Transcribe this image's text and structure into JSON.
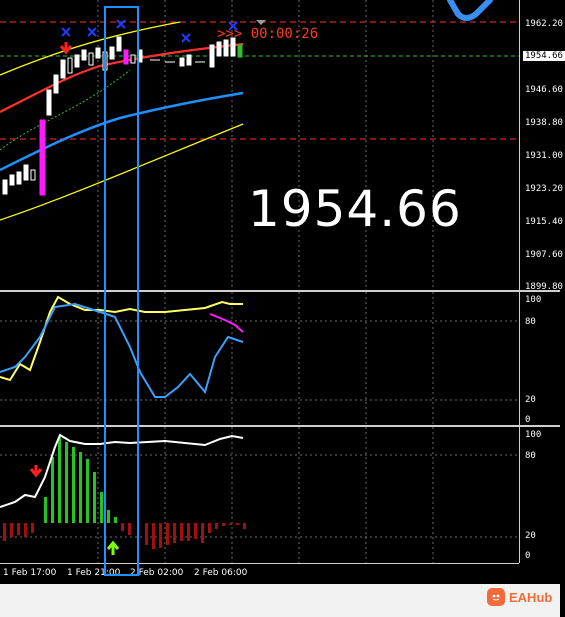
{
  "price_axis": {
    "ticks": [
      "1962.20",
      "1946.60",
      "1938.80",
      "1931.00",
      "1923.20",
      "1915.40",
      "1907.60",
      "1899.80"
    ],
    "current": "1954.66"
  },
  "big_price": "1954.66",
  "countdown": ">>> 00:00:26",
  "osc1_axis": {
    "ticks": [
      "100",
      "80",
      "20",
      "0"
    ]
  },
  "osc2_axis": {
    "ticks": [
      "100",
      "80",
      "20",
      "0"
    ]
  },
  "time_axis": {
    "labels": [
      "1 Feb 17:00",
      "1 Feb 21:00",
      "2 Feb 02:00",
      "2 Feb 06:00"
    ]
  },
  "logo": {
    "text": "EAHub"
  },
  "colors": {
    "bull": "#ffffff",
    "bear": "#000000",
    "magenta": "#ff1aff",
    "signal_red": "#ff2020",
    "signal_green": "#7fff00",
    "blue_line": "#1e90ff",
    "yellow_line": "#ffff00",
    "red_ma": "#ff3030",
    "hist_green": "#22c522",
    "hist_red": "#a01010",
    "highlight": "#1e90ff"
  },
  "icons": [
    "sell-arrow-icon",
    "buy-arrow-icon",
    "x-marker-icon",
    "logo-icon",
    "eahub-logo-icon"
  ]
}
